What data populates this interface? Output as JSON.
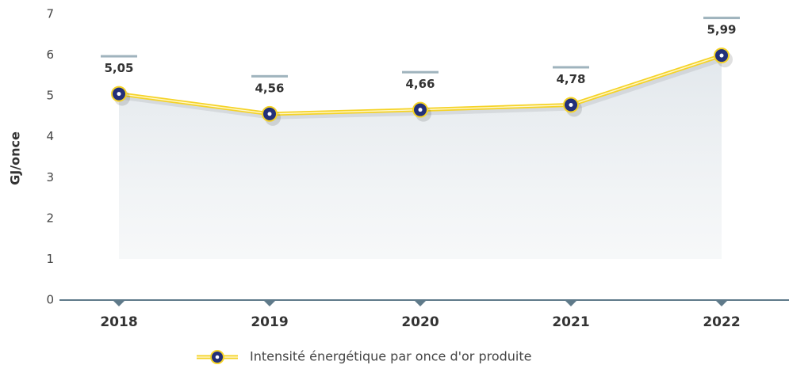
{
  "chart_data": {
    "type": "line",
    "y_label": "GJ/once",
    "categories": [
      "2018",
      "2019",
      "2020",
      "2021",
      "2022"
    ],
    "series": [
      {
        "name": "Intensité énergétique par once d'or produite",
        "color": "#f5d327",
        "marker_color": "#23307a",
        "values": [
          5.05,
          4.56,
          4.66,
          4.78,
          5.99
        ],
        "value_labels": [
          "5,05",
          "4,56",
          "4,66",
          "4,78",
          "5,99"
        ]
      }
    ],
    "ylim": [
      0,
      7
    ],
    "yticks": [
      0,
      1,
      2,
      3,
      4,
      5,
      6,
      7
    ],
    "grid": false,
    "legend": "bottom"
  }
}
